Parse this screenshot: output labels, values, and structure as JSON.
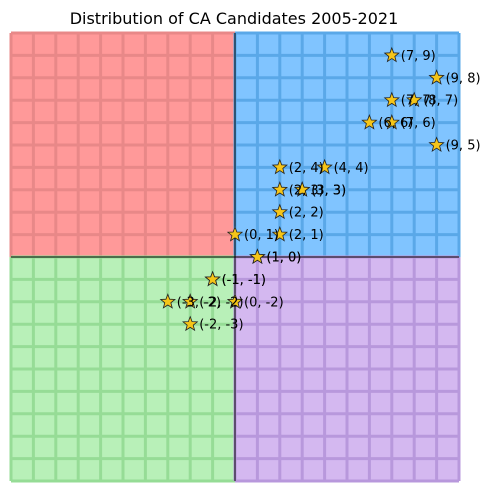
{
  "chart_data": {
    "type": "scatter",
    "title": "Distribution of CA Candidates 2005-2021",
    "xlabel": "",
    "ylabel": "",
    "xlim": [
      -10,
      10
    ],
    "ylim": [
      -10,
      10
    ],
    "grid": true,
    "quadrant_colors": {
      "top_left": "#ff9999",
      "top_right": "#80c4ff",
      "bottom_left": "#b8f0b8",
      "bottom_right": "#d4b8f0"
    },
    "grid_line_colors": {
      "top_left": "#e88888",
      "top_right": "#5aa8e8",
      "bottom_left": "#96dc96",
      "bottom_right": "#b898dc"
    },
    "marker": "star",
    "marker_color": "#f5c518",
    "points": [
      {
        "x": 7,
        "y": 9,
        "label": "(7, 9)"
      },
      {
        "x": 9,
        "y": 8,
        "label": "(9, 8)"
      },
      {
        "x": 7,
        "y": 7,
        "label": "(7, 7)"
      },
      {
        "x": 8,
        "y": 7,
        "label": "(8, 7)"
      },
      {
        "x": 6,
        "y": 6,
        "label": "(6, 6)"
      },
      {
        "x": 7,
        "y": 6,
        "label": "(7, 6)"
      },
      {
        "x": 9,
        "y": 5,
        "label": "(9, 5)"
      },
      {
        "x": 2,
        "y": 4,
        "label": "(2, 4)"
      },
      {
        "x": 4,
        "y": 4,
        "label": "(4, 4)"
      },
      {
        "x": 2,
        "y": 3,
        "label": "(2, 3)"
      },
      {
        "x": 3,
        "y": 3,
        "label": "(3, 3)"
      },
      {
        "x": 3,
        "y": 3,
        "label": "(3, 3)"
      },
      {
        "x": 2,
        "y": 2,
        "label": "(2, 2)"
      },
      {
        "x": 0,
        "y": 1,
        "label": "(0, 1)"
      },
      {
        "x": 2,
        "y": 1,
        "label": "(2, 1)"
      },
      {
        "x": 1,
        "y": 0,
        "label": "(1, 0)"
      },
      {
        "x": 1,
        "y": 0,
        "label": "(1, 0)"
      },
      {
        "x": -1,
        "y": -1,
        "label": "(-1, -1)"
      },
      {
        "x": -1,
        "y": -1,
        "label": "(-1, -1)"
      },
      {
        "x": -3,
        "y": -2,
        "label": "(-3, -2)"
      },
      {
        "x": -2,
        "y": -2,
        "label": "(-2, -2)"
      },
      {
        "x": 0,
        "y": -2,
        "label": "(0, -2)"
      },
      {
        "x": -2,
        "y": -3,
        "label": "(-2, -3)"
      }
    ]
  }
}
